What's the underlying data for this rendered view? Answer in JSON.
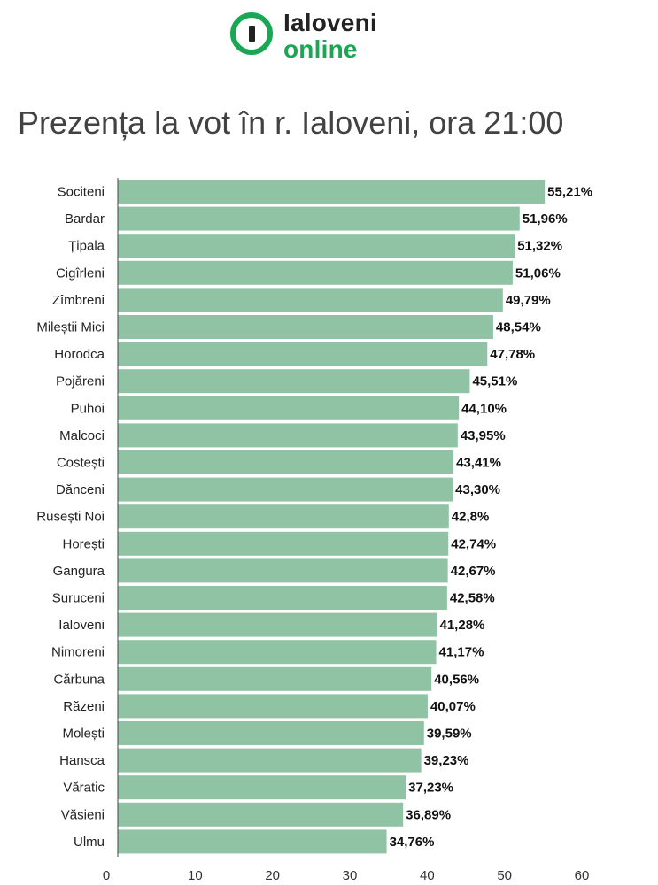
{
  "brand": {
    "line1": "Ialoveni",
    "line2": "online",
    "accent": "#1aa654"
  },
  "chart_data": {
    "type": "bar",
    "orientation": "horizontal",
    "title": "Prezența la vot în r. Ialoveni, ora 21:00",
    "bar_color": "#8fc3a4",
    "xlim": [
      0,
      60
    ],
    "xticks": [
      0,
      10,
      20,
      30,
      40,
      50,
      60
    ],
    "grid": false,
    "categories": [
      "Sociteni",
      "Bardar",
      "Țipala",
      "Cigîrleni",
      "Zîmbreni",
      "Mileștii Mici",
      "Horodca",
      "Pojăreni",
      "Puhoi",
      "Malcoci",
      "Costești",
      "Dănceni",
      "Rusești Noi",
      "Horești",
      "Gangura",
      "Suruceni",
      "Ialoveni",
      "Nimoreni",
      "Cărbuna",
      "Răzeni",
      "Molești",
      "Hansca",
      "Văratic",
      "Văsieni",
      "Ulmu"
    ],
    "values": [
      55.21,
      51.96,
      51.32,
      51.06,
      49.79,
      48.54,
      47.78,
      45.51,
      44.1,
      43.95,
      43.41,
      43.3,
      42.8,
      42.74,
      42.67,
      42.58,
      41.28,
      41.17,
      40.56,
      40.07,
      39.59,
      39.23,
      37.23,
      36.89,
      34.76
    ],
    "value_labels": [
      "55,21%",
      "51,96%",
      "51,32%",
      "51,06%",
      "49,79%",
      "48,54%",
      "47,78%",
      "45,51%",
      "44,10%",
      "43,95%",
      "43,41%",
      "43,30%",
      "42,8%",
      "42,74%",
      "42,67%",
      "42,58%",
      "41,28%",
      "41,17%",
      "40,56%",
      "40,07%",
      "39,59%",
      "39,23%",
      "37,23%",
      "36,89%",
      "34,76%"
    ]
  }
}
